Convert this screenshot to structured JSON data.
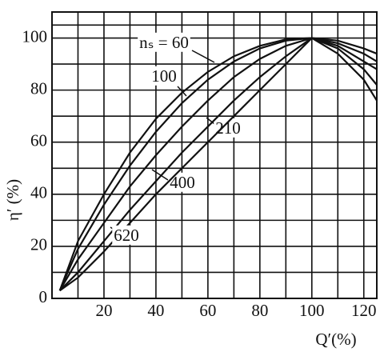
{
  "chart_data": {
    "type": "line",
    "x_label": "Q′(%)",
    "y_label": "η′ (%)",
    "x": [
      3,
      10,
      20,
      30,
      40,
      50,
      60,
      70,
      80,
      90,
      100,
      110,
      120,
      125
    ],
    "series": [
      {
        "name": "nₛ = 60",
        "color": "#111111",
        "values": [
          3,
          22,
          40,
          56,
          69,
          79,
          87,
          93,
          97,
          99.5,
          100,
          99,
          96,
          94
        ]
      },
      {
        "name": "100",
        "color": "#111111",
        "values": [
          3,
          19,
          36,
          51,
          64,
          75,
          84,
          91,
          96,
          99,
          100,
          98,
          94,
          91
        ]
      },
      {
        "name": "210",
        "color": "#111111",
        "values": [
          3,
          15,
          29,
          43,
          55,
          66,
          76,
          85,
          92,
          97,
          100,
          97,
          91,
          88
        ]
      },
      {
        "name": "400",
        "color": "#111111",
        "values": [
          3,
          10,
          22,
          34,
          45,
          56,
          66,
          76,
          85,
          93,
          100,
          96,
          88,
          82
        ]
      },
      {
        "name": "620",
        "color": "#111111",
        "values": [
          3,
          8,
          18,
          29,
          40,
          50,
          60,
          70,
          80,
          90,
          100,
          94,
          84,
          76
        ]
      }
    ],
    "xlim": [
      0,
      125
    ],
    "ylim": [
      0,
      110
    ],
    "xticks": [
      20,
      40,
      60,
      80,
      100,
      120
    ],
    "yticks": [
      0,
      20,
      40,
      60,
      80,
      100
    ],
    "grid": true,
    "minor_grid": true
  }
}
